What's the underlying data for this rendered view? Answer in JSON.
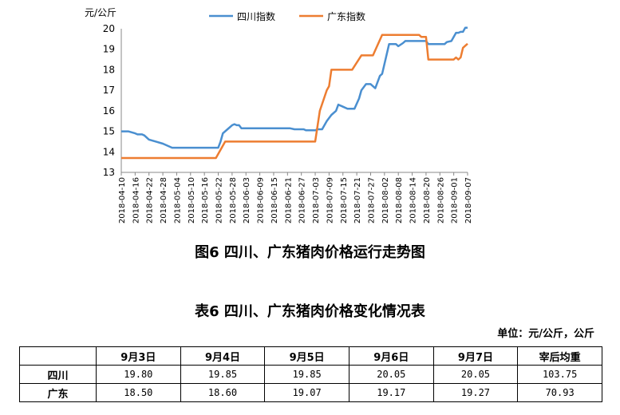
{
  "chart_data": {
    "type": "line",
    "ylabel": "元/公斤",
    "ylim": [
      13,
      20
    ],
    "yticks": [
      13,
      14,
      15,
      16,
      17,
      18,
      19,
      20
    ],
    "grid": false,
    "legend": "top",
    "x_range": [
      "2018-04-10",
      "2018-09-07"
    ],
    "xtick_labels": [
      "2018-04-10",
      "2018-04-16",
      "2018-04-22",
      "2018-04-28",
      "2018-05-04",
      "2018-05-10",
      "2018-05-16",
      "2018-05-22",
      "2018-05-28",
      "2018-06-03",
      "2018-06-09",
      "2018-06-15",
      "2018-06-21",
      "2018-06-27",
      "2018-07-03",
      "2018-07-09",
      "2018-07-15",
      "2018-07-21",
      "2018-07-27",
      "2018-08-02",
      "2018-08-08",
      "2018-08-14",
      "2018-08-20",
      "2018-08-26",
      "2018-09-01",
      "2018-09-07"
    ],
    "series": [
      {
        "name": "四川指数",
        "color": "#4a8fd0",
        "points": [
          [
            "2018-04-10",
            15.0
          ],
          [
            "2018-04-13",
            15.0
          ],
          [
            "2018-04-16",
            14.9
          ],
          [
            "2018-04-17",
            14.85
          ],
          [
            "2018-04-19",
            14.85
          ],
          [
            "2018-04-20",
            14.8
          ],
          [
            "2018-04-22",
            14.6
          ],
          [
            "2018-04-25",
            14.5
          ],
          [
            "2018-04-28",
            14.4
          ],
          [
            "2018-05-02",
            14.2
          ],
          [
            "2018-05-22",
            14.2
          ],
          [
            "2018-05-23",
            14.5
          ],
          [
            "2018-05-24",
            14.9
          ],
          [
            "2018-05-26",
            15.1
          ],
          [
            "2018-05-28",
            15.3
          ],
          [
            "2018-05-29",
            15.35
          ],
          [
            "2018-05-30",
            15.3
          ],
          [
            "2018-05-31",
            15.3
          ],
          [
            "2018-06-01",
            15.15
          ],
          [
            "2018-06-22",
            15.15
          ],
          [
            "2018-06-24",
            15.1
          ],
          [
            "2018-06-28",
            15.1
          ],
          [
            "2018-06-29",
            15.05
          ],
          [
            "2018-07-03",
            15.05
          ],
          [
            "2018-07-04",
            15.1
          ],
          [
            "2018-07-06",
            15.1
          ],
          [
            "2018-07-08",
            15.5
          ],
          [
            "2018-07-10",
            15.8
          ],
          [
            "2018-07-12",
            16.0
          ],
          [
            "2018-07-13",
            16.3
          ],
          [
            "2018-07-15",
            16.2
          ],
          [
            "2018-07-17",
            16.1
          ],
          [
            "2018-07-20",
            16.1
          ],
          [
            "2018-07-22",
            16.6
          ],
          [
            "2018-07-23",
            17.0
          ],
          [
            "2018-07-25",
            17.3
          ],
          [
            "2018-07-27",
            17.3
          ],
          [
            "2018-07-29",
            17.1
          ],
          [
            "2018-07-31",
            17.7
          ],
          [
            "2018-08-01",
            17.8
          ],
          [
            "2018-08-04",
            19.25
          ],
          [
            "2018-08-07",
            19.25
          ],
          [
            "2018-08-08",
            19.15
          ],
          [
            "2018-08-10",
            19.3
          ],
          [
            "2018-08-11",
            19.4
          ],
          [
            "2018-08-20",
            19.4
          ],
          [
            "2018-08-21",
            19.25
          ],
          [
            "2018-08-28",
            19.25
          ],
          [
            "2018-08-29",
            19.35
          ],
          [
            "2018-08-31",
            19.4
          ],
          [
            "2018-09-02",
            19.8
          ],
          [
            "2018-09-03",
            19.8
          ],
          [
            "2018-09-04",
            19.85
          ],
          [
            "2018-09-05",
            19.85
          ],
          [
            "2018-09-06",
            20.05
          ],
          [
            "2018-09-07",
            20.05
          ]
        ]
      },
      {
        "name": "广东指数",
        "color": "#ed7d31",
        "points": [
          [
            "2018-04-10",
            13.7
          ],
          [
            "2018-05-21",
            13.7
          ],
          [
            "2018-05-25",
            14.5
          ],
          [
            "2018-07-03",
            14.5
          ],
          [
            "2018-07-05",
            16.0
          ],
          [
            "2018-07-08",
            17.0
          ],
          [
            "2018-07-09",
            17.2
          ],
          [
            "2018-07-10",
            18.0
          ],
          [
            "2018-07-19",
            18.0
          ],
          [
            "2018-07-23",
            18.7
          ],
          [
            "2018-07-28",
            18.7
          ],
          [
            "2018-08-01",
            19.7
          ],
          [
            "2018-08-17",
            19.7
          ],
          [
            "2018-08-18",
            19.6
          ],
          [
            "2018-08-20",
            19.6
          ],
          [
            "2018-08-21",
            18.5
          ],
          [
            "2018-09-01",
            18.5
          ],
          [
            "2018-09-02",
            18.6
          ],
          [
            "2018-09-03",
            18.5
          ],
          [
            "2018-09-04",
            18.6
          ],
          [
            "2018-09-05",
            19.07
          ],
          [
            "2018-09-06",
            19.17
          ],
          [
            "2018-09-07",
            19.27
          ]
        ]
      }
    ]
  },
  "figure_caption": "图6 四川、广东猪肉价格运行走势图",
  "table": {
    "caption": "表6 四川、广东猪肉价格变化情况表",
    "unit": "单位：元/公斤，公斤",
    "headers": [
      "",
      "9月3日",
      "9月4日",
      "9月5日",
      "9月6日",
      "9月7日",
      "宰后均重"
    ],
    "rows": [
      {
        "region": "四川",
        "cells": [
          "19.80",
          "19.85",
          "19.85",
          "20.05",
          "20.05",
          "103.75"
        ]
      },
      {
        "region": "广东",
        "cells": [
          "18.50",
          "18.60",
          "19.07",
          "19.17",
          "19.27",
          "70.93"
        ]
      }
    ]
  }
}
